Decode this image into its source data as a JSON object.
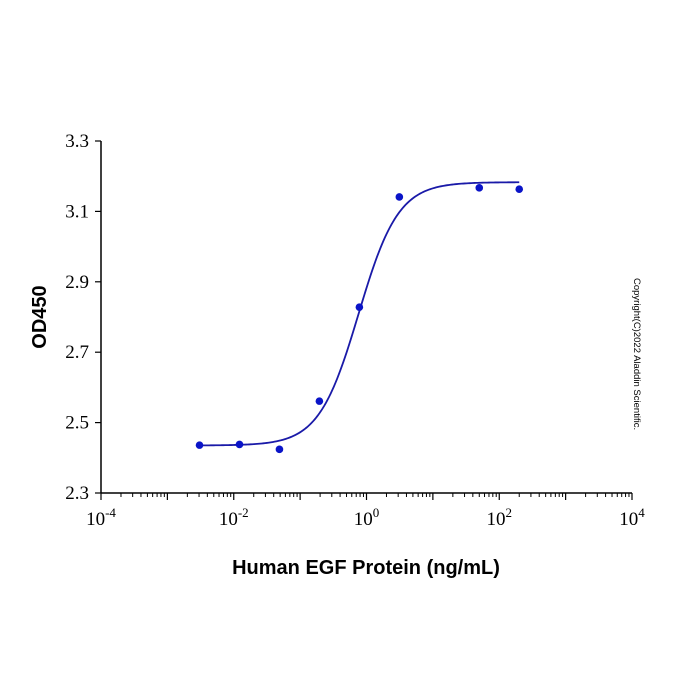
{
  "chart_data": {
    "type": "scatter",
    "xlabel": "Human EGF Protein (ng/mL)",
    "ylabel": "OD450",
    "x_scale": "log",
    "xlim": [
      0.0001,
      10000
    ],
    "ylim": [
      2.3,
      3.3
    ],
    "x_ticks": [
      {
        "base": "10",
        "exp": "-4",
        "value": 0.0001
      },
      {
        "base": "10",
        "exp": "-2",
        "value": 0.01
      },
      {
        "base": "10",
        "exp": "0",
        "value": 1
      },
      {
        "base": "10",
        "exp": "2",
        "value": 100
      },
      {
        "base": "10",
        "exp": "4",
        "value": 10000
      }
    ],
    "y_ticks": [
      "2.3",
      "2.5",
      "2.7",
      "2.9",
      "3.1",
      "3.3"
    ],
    "grid": false,
    "points": {
      "x": [
        0.00305,
        0.0122,
        0.0488,
        0.195,
        0.781,
        3.125,
        50,
        200
      ],
      "y": [
        2.436,
        2.438,
        2.424,
        2.561,
        2.828,
        3.141,
        3.167,
        3.163
      ]
    },
    "fit": {
      "model": "4PL",
      "bottom": 2.435,
      "top": 3.183,
      "ec50": 0.76,
      "hill": 1.45,
      "x_range": [
        0.00305,
        200
      ]
    },
    "color": "#0a14c8",
    "line_color": "#1a1aa8"
  },
  "watermark": "Copyright(C)2022 Aladdin Scientific."
}
